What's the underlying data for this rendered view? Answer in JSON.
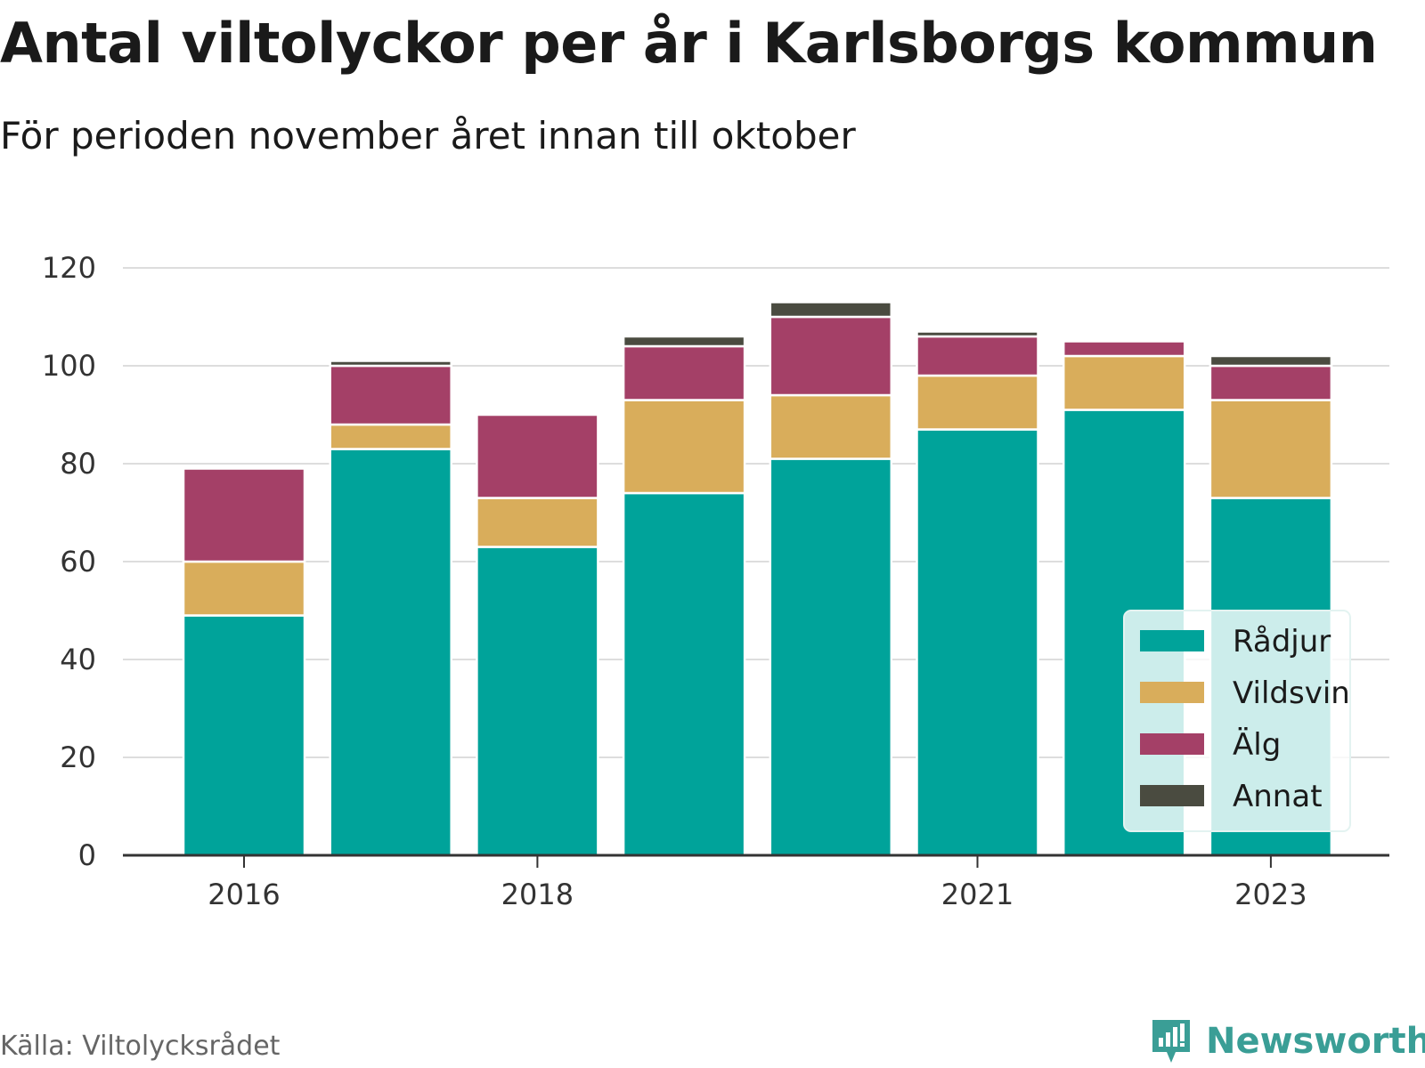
{
  "chart_data": {
    "type": "bar",
    "stacked": true,
    "title": "Antal viltolyckor per år i Karlsborgs kommun",
    "subtitle": "För perioden november året innan till oktober",
    "x": [
      2016,
      2017,
      2018,
      2019,
      2020,
      2021,
      2022,
      2023
    ],
    "x_tick_labels": [
      "2016",
      "2018",
      "2021",
      "2023"
    ],
    "x_tick_values": [
      2016,
      2018,
      2021,
      2023
    ],
    "series": [
      {
        "name": "Rådjur",
        "color": "#00a39a",
        "values": [
          49,
          83,
          63,
          74,
          81,
          87,
          91,
          73
        ]
      },
      {
        "name": "Vildsvin",
        "color": "#d9ad5b",
        "values": [
          11,
          5,
          10,
          19,
          13,
          11,
          11,
          20
        ]
      },
      {
        "name": "Älg",
        "color": "#a44067",
        "values": [
          19,
          12,
          17,
          11,
          16,
          8,
          3,
          7
        ]
      },
      {
        "name": "Annat",
        "color": "#4a4b40",
        "values": [
          0,
          1,
          0,
          2,
          3,
          1,
          0,
          2
        ]
      }
    ],
    "ylim": [
      0,
      120
    ],
    "y_ticks": [
      0,
      20,
      40,
      60,
      80,
      100,
      120
    ],
    "y_tick_labels": [
      "0",
      "20",
      "40",
      "60",
      "80",
      "100",
      "120"
    ],
    "grid": "horizontal",
    "legend_position": "bottom-right"
  },
  "footer": {
    "source": "Källa: Viltolycksrådet",
    "brand": "Newsworthy"
  },
  "colors": {
    "brand": "#3a9e96",
    "grid": "#dddddd",
    "axis": "#333333"
  }
}
